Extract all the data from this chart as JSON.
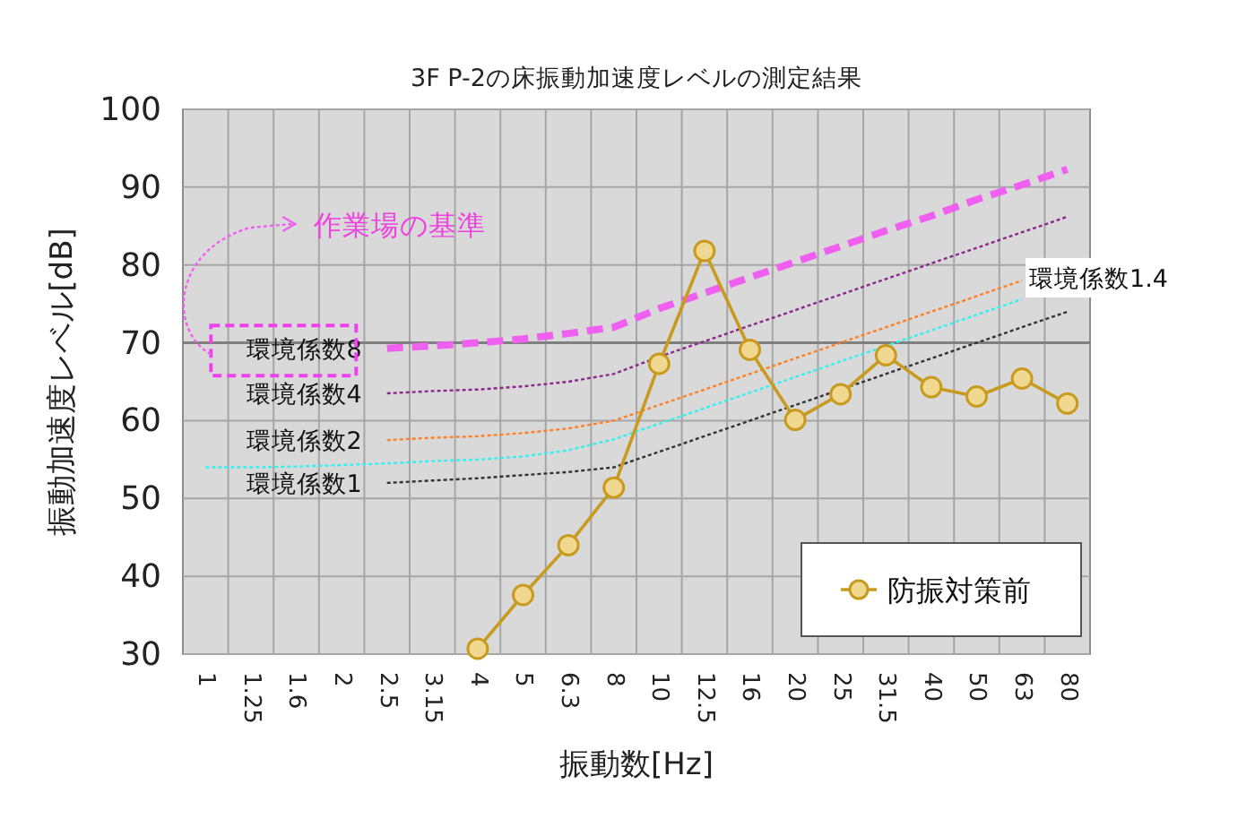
{
  "chart_data": {
    "type": "line",
    "title": "3F P-2の床振動加速度レベルの測定結果",
    "xlabel": "振動数[Hz]",
    "ylabel": "振動加速度レベル[dB]",
    "categories": [
      "1",
      "1.25",
      "1.6",
      "2",
      "2.5",
      "3.15",
      "4",
      "5",
      "6.3",
      "8",
      "10",
      "12.5",
      "16",
      "20",
      "25",
      "31.5",
      "40",
      "50",
      "63",
      "80"
    ],
    "series": [
      {
        "name": "防振対策前",
        "color": "#c89b1e",
        "marker": "circle",
        "line_style": "solid",
        "values": [
          null,
          null,
          null,
          null,
          null,
          null,
          30.7,
          37.6,
          44,
          51.4,
          67.3,
          81.8,
          69.1,
          60.1,
          63.4,
          68.4,
          64.3,
          63.1,
          65.4,
          62.2
        ]
      },
      {
        "name": "環境係数8",
        "color": "#f060f0",
        "marker": "none",
        "line_style": "dashed",
        "values": [
          null,
          null,
          null,
          null,
          69.3,
          69.6,
          70,
          70.5,
          71.2,
          72,
          74.4,
          76.4,
          78.4,
          80.4,
          82.4,
          84.4,
          86.3,
          88.4,
          90.3,
          92.3
        ]
      },
      {
        "name": "環境係数4",
        "color": "#8b2a8b",
        "marker": "none",
        "line_style": "dotted",
        "values": [
          null,
          null,
          null,
          null,
          63.5,
          63.8,
          64,
          64.4,
          65,
          66,
          68.2,
          70.2,
          72.2,
          74.2,
          76.2,
          78.2,
          80.2,
          82.2,
          84.2,
          86.2
        ]
      },
      {
        "name": "環境係数2",
        "color": "#ff7f27",
        "marker": "none",
        "line_style": "dotted",
        "values": [
          null,
          null,
          null,
          null,
          57.5,
          57.8,
          58,
          58.4,
          59,
          60,
          62,
          64,
          66,
          68,
          70,
          72,
          74,
          76,
          78,
          null
        ]
      },
      {
        "name": "環境係数1.4",
        "color": "#33f0f0",
        "marker": "none",
        "line_style": "dotted",
        "values": [
          54,
          54,
          54.1,
          54.3,
          54.5,
          54.8,
          55,
          55.4,
          56.2,
          57.6,
          59.6,
          61.6,
          63.6,
          65.6,
          67.6,
          69.6,
          71.6,
          73.6,
          75.6,
          null
        ]
      },
      {
        "name": "環境係数1",
        "color": "#333333",
        "marker": "none",
        "line_style": "dotted",
        "values": [
          null,
          null,
          null,
          null,
          52,
          52.3,
          52.6,
          53,
          53.4,
          54,
          56,
          58,
          60,
          62,
          64,
          66,
          68,
          70,
          72,
          74
        ]
      }
    ],
    "ylim": [
      30,
      100
    ],
    "yticks": [
      30,
      40,
      50,
      60,
      70,
      80,
      90,
      100
    ],
    "grid": true,
    "legend": "bottom right",
    "ref_lines": [
      {
        "axis": "y",
        "value": 70,
        "color": "#7f7f7f"
      }
    ],
    "annotations": [
      {
        "text": "作業場の基準",
        "x": "1",
        "y": 69
      }
    ]
  }
}
